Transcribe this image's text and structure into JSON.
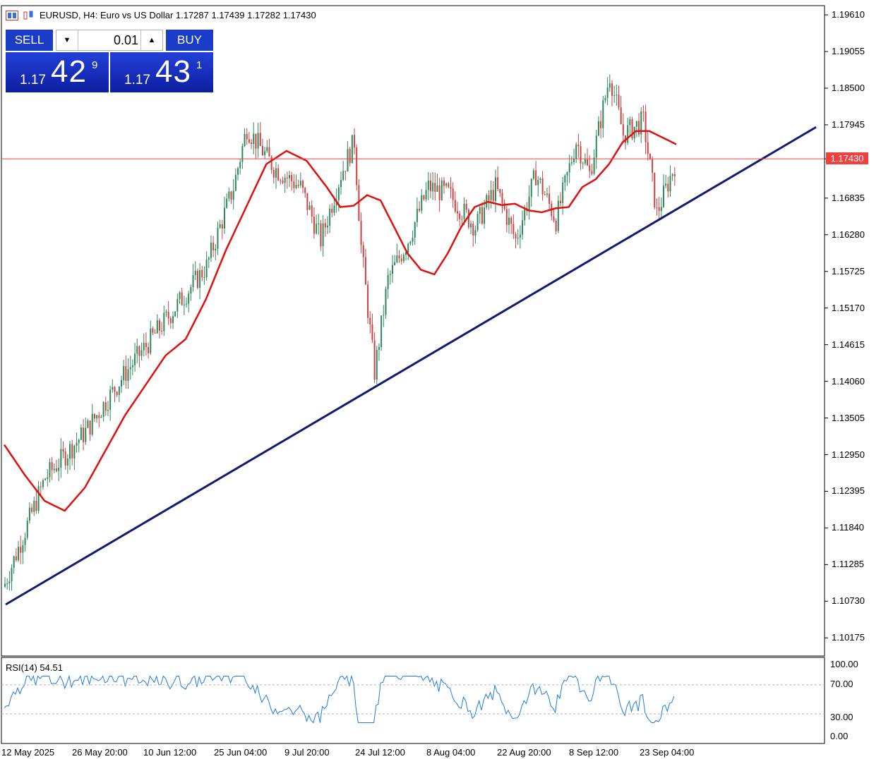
{
  "header": {
    "symbol_text": "EURUSD, H4:  Euro vs US Dollar  1.17287 1.17439 1.17282 1.17430",
    "icons": [
      "chart-window-icon",
      "candles-icon"
    ]
  },
  "trade_panel": {
    "sell_label": "SELL",
    "buy_label": "BUY",
    "lot_value": "0.01",
    "sell_price": {
      "prefix": "1.17",
      "main": "42",
      "sup": "9"
    },
    "buy_price": {
      "prefix": "1.17",
      "main": "43",
      "sup": "1"
    },
    "colors": {
      "button": "#1a3cc7"
    }
  },
  "price_axis": {
    "ticks": [
      "1.19610",
      "1.19055",
      "1.18500",
      "1.17945",
      "1.17430",
      "1.16835",
      "1.16280",
      "1.15725",
      "1.15170",
      "1.14615",
      "1.14060",
      "1.13505",
      "1.12950",
      "1.12395",
      "1.11840",
      "1.11285",
      "1.10730",
      "1.10175"
    ],
    "current_price": "1.17430",
    "current_price_color": "#f04040"
  },
  "time_axis": {
    "ticks": [
      "12 May 2025",
      "26 May 20:00",
      "10 Jun 12:00",
      "25 Jun 04:00",
      "9 Jul 20:00",
      "24 Jul 12:00",
      "8 Aug 04:00",
      "22 Aug 20:00",
      "8 Sep 12:00",
      "23 Sep 04:00"
    ]
  },
  "rsi": {
    "label": "RSI(14) 54.51",
    "ticks": [
      "100.00",
      "70.00",
      "30.00",
      "0.00"
    ],
    "color": "#1e7be0"
  },
  "chart_data": {
    "type": "candlestick",
    "symbol": "EURUSD",
    "timeframe": "H4",
    "ylim": [
      1.099,
      1.1975
    ],
    "ma_color": "#e01010",
    "trendline_color": "#101a6e",
    "trendline": {
      "start": {
        "x": "12 May 2025",
        "y": 1.1068
      },
      "end": {
        "x": "end",
        "y": 1.1791
      }
    },
    "ma_points": [
      [
        0,
        1.131
      ],
      [
        3,
        1.1265
      ],
      [
        6,
        1.1225
      ],
      [
        9,
        1.121
      ],
      [
        12,
        1.1245
      ],
      [
        15,
        1.13
      ],
      [
        18,
        1.1355
      ],
      [
        21,
        1.14
      ],
      [
        24,
        1.1445
      ],
      [
        27,
        1.147
      ],
      [
        30,
        1.153
      ],
      [
        33,
        1.1605
      ],
      [
        36,
        1.167
      ],
      [
        39,
        1.1735
      ],
      [
        42,
        1.1755
      ],
      [
        45,
        1.174
      ],
      [
        48,
        1.17
      ],
      [
        50,
        1.167
      ],
      [
        52,
        1.1672
      ],
      [
        54,
        1.1688
      ],
      [
        56,
        1.168
      ],
      [
        58,
        1.164
      ],
      [
        60,
        1.16
      ],
      [
        62,
        1.1575
      ],
      [
        64,
        1.1568
      ],
      [
        66,
        1.16
      ],
      [
        68,
        1.164
      ],
      [
        70,
        1.167
      ],
      [
        72,
        1.1678
      ],
      [
        74,
        1.1673
      ],
      [
        76,
        1.1675
      ],
      [
        78,
        1.1665
      ],
      [
        80,
        1.1662
      ],
      [
        82,
        1.1668
      ],
      [
        84,
        1.167
      ],
      [
        86,
        1.17
      ],
      [
        88,
        1.1712
      ],
      [
        90,
        1.1735
      ],
      [
        92,
        1.1768
      ],
      [
        94,
        1.1785
      ],
      [
        96,
        1.1785
      ],
      [
        98,
        1.1775
      ],
      [
        100,
        1.1765
      ]
    ],
    "candle_count": 100,
    "rsi_ylim": [
      0,
      100
    ],
    "rsi_levels": [
      70,
      30
    ],
    "rsi_last": 54.51
  }
}
